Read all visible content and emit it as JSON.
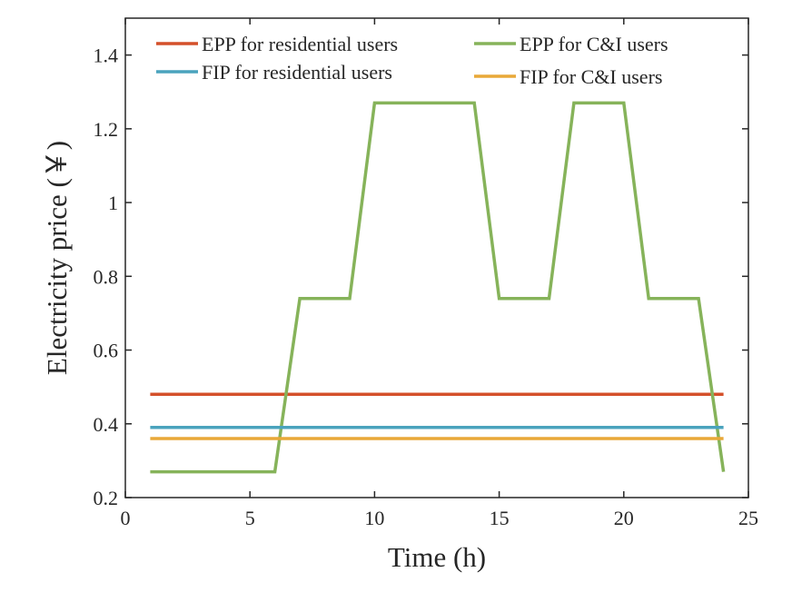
{
  "chart_data": {
    "type": "line",
    "xlabel": "Time (h)",
    "ylabel": "Electricity price (￥)",
    "xlim": [
      0,
      25
    ],
    "ylim": [
      0.2,
      1.5
    ],
    "xticks": [
      "0",
      "5",
      "10",
      "15",
      "20",
      "25"
    ],
    "xtick_values": [
      0,
      5,
      10,
      15,
      20,
      25
    ],
    "yticks": [
      "0.2",
      "0.4",
      "0.6",
      "0.8",
      "1",
      "1.2",
      "1.4"
    ],
    "ytick_values": [
      0.2,
      0.4,
      0.6,
      0.8,
      1.0,
      1.2,
      1.4
    ],
    "grid": false,
    "legend_position": "top",
    "series": [
      {
        "name": "EPP for residential users",
        "color": "#d4502a",
        "x": [
          1,
          24
        ],
        "y": [
          0.48,
          0.48
        ]
      },
      {
        "name": "EPP for C&I users",
        "color": "#86b35a",
        "x": [
          1,
          2,
          3,
          4,
          5,
          6,
          7,
          8,
          9,
          10,
          11,
          12,
          13,
          14,
          15,
          16,
          17,
          18,
          19,
          20,
          21,
          22,
          23,
          24
        ],
        "y": [
          0.27,
          0.27,
          0.27,
          0.27,
          0.27,
          0.27,
          0.74,
          0.74,
          0.74,
          1.27,
          1.27,
          1.27,
          1.27,
          1.27,
          0.74,
          0.74,
          0.74,
          1.27,
          1.27,
          1.27,
          0.74,
          0.74,
          0.74,
          0.27
        ]
      },
      {
        "name": "FIP for residential users",
        "color": "#4aa3bd",
        "x": [
          1,
          24
        ],
        "y": [
          0.39,
          0.39
        ]
      },
      {
        "name": "FIP for C&I users",
        "color": "#e8a838",
        "x": [
          1,
          24
        ],
        "y": [
          0.36,
          0.36
        ]
      }
    ]
  }
}
